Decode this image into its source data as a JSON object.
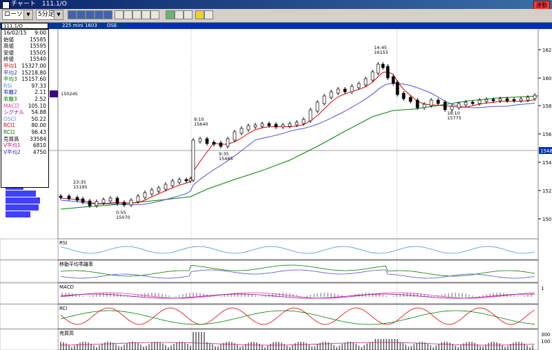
{
  "window": {
    "title": "チャート　111.1/O",
    "link_button": "連動"
  },
  "toolbar": {
    "chart_type": "ローソク",
    "interval": "5分足",
    "icons": [
      "new-chart-icon",
      "bar-chart-icon",
      "bar-chart-icon",
      "bar-chart-icon",
      "save-icon",
      "trend-line-icon",
      "fibonacci-icon",
      "crosshair-icon",
      "grid-icon",
      "draw-icon",
      "pointer-icon",
      "shape-icon",
      "search-icon",
      "settings-icon"
    ]
  },
  "infobar": {
    "symbol": "111.1/O",
    "name": "225 mini 1603",
    "market": "OSE"
  },
  "infobox": {
    "date": "16/02/15",
    "time": "9:00",
    "rows": [
      {
        "label": "始値",
        "value": "15585",
        "color": "#000000"
      },
      {
        "label": "高値",
        "value": "15595",
        "color": "#000000"
      },
      {
        "label": "安値",
        "value": "15505",
        "color": "#000000"
      },
      {
        "label": "終値",
        "value": "15540",
        "color": "#000000"
      },
      {
        "label": "平均1",
        "value": "15327.00",
        "color": "#e00000"
      },
      {
        "label": "平均2",
        "value": "15218.80",
        "color": "#3030c0"
      },
      {
        "label": "平均3",
        "value": "15157.60",
        "color": "#008000"
      },
      {
        "label": "RSI",
        "value": "97.33",
        "color": "#4a8fe0"
      },
      {
        "label": "乖離2",
        "value": "2.11",
        "color": "#2020c0"
      },
      {
        "label": "乖離3",
        "value": "2.52",
        "color": "#008000"
      },
      {
        "label": "MACD",
        "value": "105.10",
        "color": "#e040a0"
      },
      {
        "label": "シグナル",
        "value": "54.88",
        "color": "#a000a0"
      },
      {
        "label": "OSCI",
        "value": "50.22",
        "color": "#4a8fe0"
      },
      {
        "label": "RCI1",
        "value": "80.00",
        "color": "#e00000"
      },
      {
        "label": "RCI2",
        "value": "96.43",
        "color": "#008000"
      },
      {
        "label": "売買高",
        "value": "33584",
        "color": "#000000"
      },
      {
        "label": "V平均1",
        "value": "6810",
        "color": "#c02090"
      },
      {
        "label": "V平均2",
        "value": "4750",
        "color": "#3030c0"
      }
    ]
  },
  "main_chart": {
    "price_ticks": [
      "162",
      "160",
      "158",
      "156",
      "154",
      "152",
      "150"
    ],
    "current_price_label": "1548",
    "volume_profile_marker": "150245",
    "annotations": [
      {
        "label": "23:35",
        "value": "15195"
      },
      {
        "label": "0:55",
        "value": "15070"
      },
      {
        "label": "9:10",
        "value": "15640"
      },
      {
        "label": "9:35",
        "value": "15485"
      },
      {
        "label": "14:45",
        "value": "16155"
      },
      {
        "label": "18:10",
        "value": "15775"
      }
    ]
  },
  "panels": [
    {
      "title": "RSI",
      "ticks": []
    },
    {
      "title": "移動平均乖離率",
      "ticks": []
    },
    {
      "title": "MACD",
      "ticks": [
        "1"
      ]
    },
    {
      "title": "RCI",
      "ticks": []
    },
    {
      "title": "売買高",
      "ticks": [
        "300",
        "100"
      ]
    }
  ],
  "colors": {
    "candle_up": "#ffffff",
    "candle_down": "#000000",
    "ma1": "#e00000",
    "ma2": "#5050d0",
    "ma3": "#008000",
    "rsi": "#4a8fe0",
    "macd": "#e040a0",
    "signal": "#a000a0",
    "volume_profile": "#4040ff"
  }
}
